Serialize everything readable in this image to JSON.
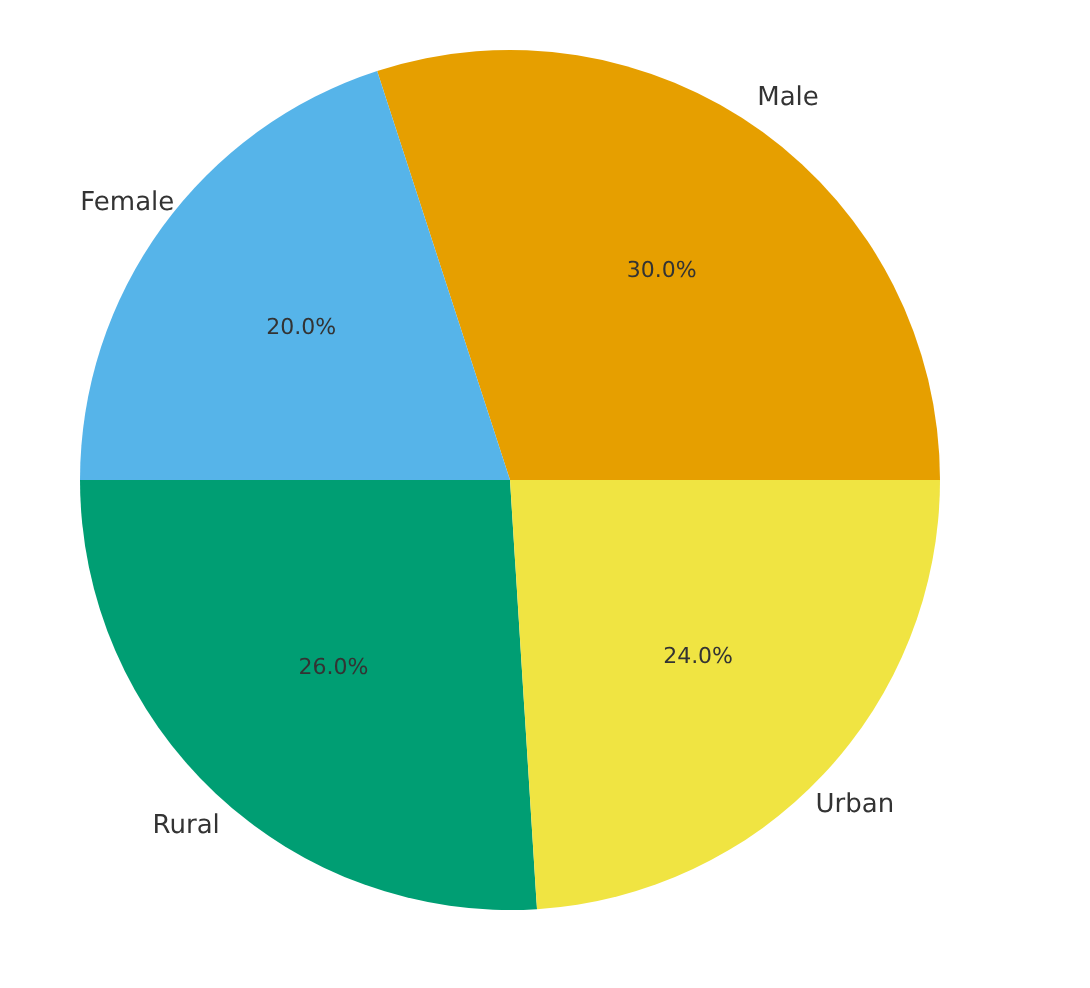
{
  "chart_data": {
    "type": "pie",
    "categories": [
      "Male",
      "Female",
      "Rural",
      "Urban"
    ],
    "values": [
      30,
      20,
      26,
      24
    ],
    "value_labels": [
      "30.0%",
      "20.0%",
      "26.0%",
      "24.0%"
    ],
    "colors": [
      "#e69f00",
      "#56b4e9",
      "#009e73",
      "#f0e442"
    ],
    "legend": false
  }
}
